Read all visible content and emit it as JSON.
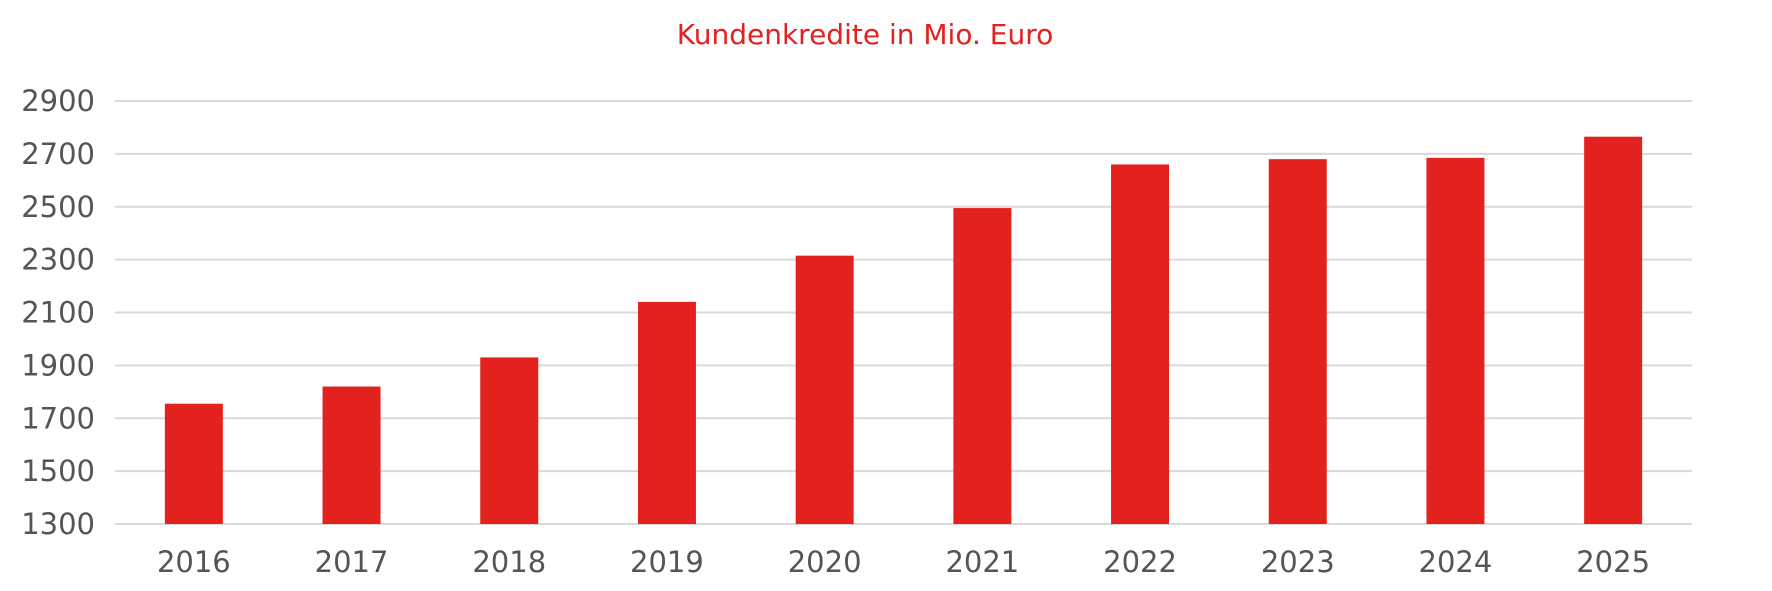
{
  "chart_data": {
    "type": "bar",
    "title": "Kundenkredite in Mio. Euro",
    "xlabel": "",
    "ylabel": "",
    "categories": [
      "2016",
      "2017",
      "2018",
      "2019",
      "2020",
      "2021",
      "2022",
      "2023",
      "2024",
      "2025"
    ],
    "values": [
      1755,
      1820,
      1930,
      2140,
      2315,
      2495,
      2660,
      2680,
      2685,
      2765
    ],
    "ylim": [
      1300,
      2900
    ],
    "yticks": [
      "1300",
      "1500",
      "1700",
      "1900",
      "2100",
      "2300",
      "2500",
      "2700",
      "2900"
    ],
    "grid": true,
    "legend": "none",
    "colors": {
      "bar": "#e3211f",
      "title": "#e3211f",
      "grid": "#d9d9d9",
      "tick_text": "#555555"
    }
  }
}
